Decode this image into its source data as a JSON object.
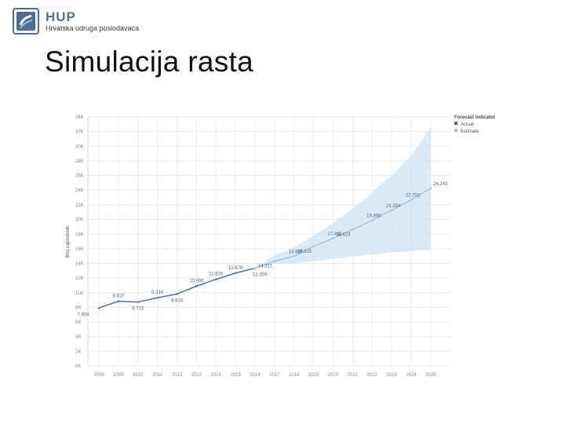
{
  "header": {
    "logo_title": "HUP",
    "logo_subtitle": "Hrvatska udruga poslodavaca",
    "slide_title": "Simulacija rasta"
  },
  "colors": {
    "actual": "#4a6a8f",
    "estimate": "#9fc3e2",
    "band": "#cfe3f4",
    "grid": "#ebebeb"
  },
  "chart_data": {
    "type": "line",
    "title": "",
    "xlabel": "",
    "ylabel": "Broj zaposlenih",
    "x": [
      2008,
      2009,
      2010,
      2011,
      2012,
      2013,
      2014,
      2015,
      2016,
      2017,
      2018,
      2019,
      2020,
      2021,
      2022,
      2023,
      2024,
      2025
    ],
    "xticks": [
      "2008",
      "2009",
      "2010",
      "2011",
      "2012",
      "2013",
      "2014",
      "2015",
      "2016",
      "2017",
      "2018",
      "2019",
      "2020",
      "2021",
      "2022",
      "2023",
      "2024",
      "2025"
    ],
    "ylim": [
      0,
      34000
    ],
    "yticks": [
      0,
      2000,
      4000,
      6000,
      8000,
      10000,
      12000,
      14000,
      16000,
      18000,
      20000,
      22000,
      24000,
      26000,
      28000,
      30000,
      32000,
      34000
    ],
    "ytick_labels": [
      "0K",
      "2K",
      "4K",
      "6K",
      "8K",
      "10K",
      "12K",
      "14K",
      "16K",
      "18K",
      "20K",
      "22K",
      "24K",
      "26K",
      "28K",
      "30K",
      "32K",
      "34K"
    ],
    "series": [
      {
        "name": "Actual",
        "x": [
          2008,
          2009,
          2010,
          2011,
          2012,
          2013,
          2014,
          2015,
          2016
        ],
        "values": [
          7908,
          8827,
          8723,
          9314,
          9818,
          10906,
          11828,
          12678,
          13359
        ],
        "labels": [
          "7.908",
          "8.827",
          "8.723",
          "9.314",
          "9.818",
          "10.906",
          "11.828",
          "12.678",
          "13.359"
        ]
      },
      {
        "name": "Estimate",
        "x": [
          2016,
          2017,
          2018,
          2019,
          2020,
          2021,
          2022,
          2023,
          2024,
          2025
        ],
        "values": [
          13359,
          14311,
          14987,
          16328,
          17441,
          18623,
          19898,
          21254,
          22702,
          24249
        ],
        "labels": [
          "",
          "14.311",
          "14.987",
          "16.328",
          "17.441",
          "18.623",
          "19.898",
          "21.254",
          "22.702",
          "24.249"
        ]
      }
    ],
    "confidence_band": {
      "x": [
        2016,
        2017,
        2018,
        2019,
        2020,
        2021,
        2022,
        2023,
        2024,
        2025
      ],
      "lower": [
        13359,
        13900,
        14000,
        14300,
        14600,
        14900,
        15200,
        15500,
        15700,
        15900
      ],
      "upper": [
        13359,
        15100,
        16200,
        17800,
        19500,
        21500,
        23700,
        26000,
        28700,
        32600
      ]
    },
    "legend": {
      "title": "Forecast indicator",
      "position": "top-right",
      "entries": [
        "Actual",
        "Estimate"
      ]
    },
    "grid": true
  }
}
